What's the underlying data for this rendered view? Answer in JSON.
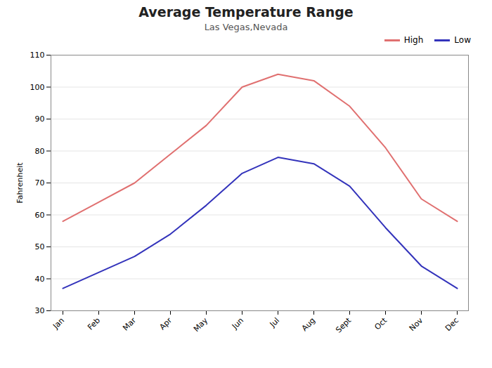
{
  "chart_data": {
    "type": "line",
    "title": "Average Temperature Range",
    "subtitle": "Las Vegas,Nevada",
    "ylabel": "Fahrenheit",
    "categories": [
      "Jan",
      "Feb",
      "Mar",
      "Apr",
      "May",
      "Jun",
      "Jul",
      "Aug",
      "Sept",
      "Oct",
      "Nov",
      "Dec"
    ],
    "series": [
      {
        "name": "High",
        "color": "#e07070",
        "values": [
          58,
          64,
          70,
          79,
          88,
          100,
          104,
          102,
          94,
          81,
          65,
          58
        ]
      },
      {
        "name": "Low",
        "color": "#3333bb",
        "values": [
          37,
          42,
          47,
          54,
          63,
          73,
          78,
          76,
          69,
          56,
          44,
          37
        ]
      }
    ],
    "ylim": [
      30,
      110
    ],
    "yticks": [
      30,
      40,
      50,
      60,
      70,
      80,
      90,
      100,
      110
    ],
    "grid": true,
    "legend": "upper right"
  }
}
